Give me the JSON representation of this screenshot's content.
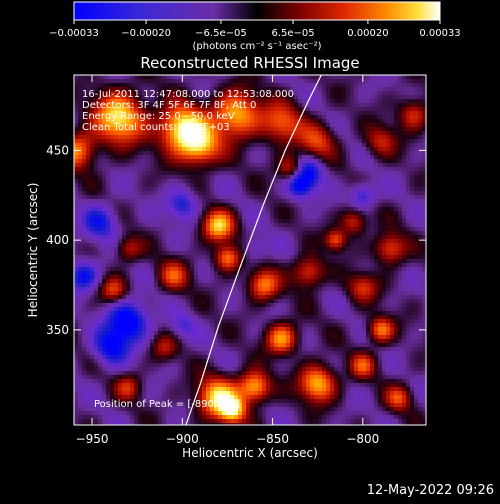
{
  "chart_data": {
    "type": "heatmap",
    "title": "Reconstructed RHESSI Image",
    "xlabel": "Heliocentric X (arcsec)",
    "ylabel": "Heliocentric Y (arcsec)",
    "xlim": [
      -960,
      -765
    ],
    "ylim": [
      297,
      492
    ],
    "x_ticks": [
      -950,
      -900,
      -850,
      -800
    ],
    "y_ticks": [
      350,
      400,
      450
    ],
    "x_tick_labels": [
      "−950",
      "−900",
      "−850",
      "−800"
    ],
    "y_tick_labels": [
      "350",
      "400",
      "450"
    ],
    "colorbar": {
      "range": [
        -0.00033,
        0.00033
      ],
      "ticks": [
        -0.00033,
        -0.0002,
        -6.5e-05,
        6.5e-05,
        0.0002,
        0.00033
      ],
      "tick_labels": [
        "−0.00033",
        "−0.00020",
        "−6.5e−05",
        "6.5e−05",
        "0.00020",
        "0.00033"
      ],
      "units_label": "(photons cm⁻² s⁻¹ asec⁻²)"
    },
    "annotations": [
      "16-Jul-2011 12:47:08.000 to 12:53:08.000",
      "Detectors: 3F 4F 5F 6F 7F 8F, Att 0",
      "Energy Range: 25.0 - 50.0 keV",
      "Clean     Total counts: 6.19E+03"
    ],
    "peak_label": "Position of Peak = [-890,457]",
    "limb_curve": [
      [
        -898,
        297
      ],
      [
        -890,
        320
      ],
      [
        -880,
        352
      ],
      [
        -868,
        385
      ],
      [
        -855,
        420
      ],
      [
        -843,
        450
      ],
      [
        -830,
        478
      ],
      [
        -823,
        492
      ]
    ],
    "grid": false
  },
  "colors": {
    "background": "#000000",
    "text": "#ffffff",
    "colormap": [
      "#0000ff",
      "#2020c8",
      "#6a2bd0",
      "#6a2ea0",
      "#1a0010",
      "#800000",
      "#d02000",
      "#ff6000",
      "#ffb000",
      "#ffff80",
      "#ffffff"
    ]
  },
  "footer": {
    "date": "12-May-2022 09:26"
  }
}
